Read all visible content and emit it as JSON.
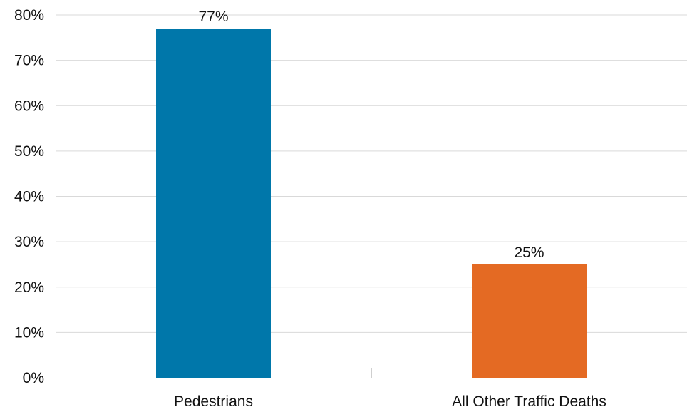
{
  "chart_data": {
    "type": "bar",
    "title": "",
    "xlabel": "",
    "ylabel": "",
    "categories": [
      "Pedestrians",
      "All Other Traffic Deaths"
    ],
    "values": [
      77,
      25
    ],
    "data_labels": [
      "77%",
      "25%"
    ],
    "colors": [
      "#0077AA",
      "#E46A23"
    ],
    "ylim": [
      0,
      80
    ],
    "yticks": [
      0,
      10,
      20,
      30,
      40,
      50,
      60,
      70,
      80
    ],
    "ytick_labels": [
      "0%",
      "10%",
      "20%",
      "30%",
      "40%",
      "50%",
      "60%",
      "70%",
      "80%"
    ],
    "grid": true,
    "legend": "none"
  }
}
